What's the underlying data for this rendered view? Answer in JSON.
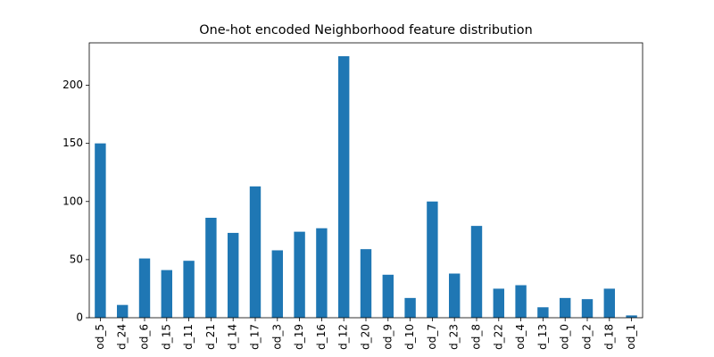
{
  "chart_data": {
    "type": "bar",
    "title": "One-hot encoded Neighborhood feature distribution",
    "categories": [
      "od_5",
      "d_24",
      "od_6",
      "d_15",
      "d_11",
      "d_21",
      "d_14",
      "d_17",
      "od_3",
      "d_19",
      "d_16",
      "d_12",
      "d_20",
      "od_9",
      "d_10",
      "od_7",
      "d_23",
      "od_8",
      "d_22",
      "od_4",
      "d_13",
      "od_0",
      "od_2",
      "d_18",
      "od_1"
    ],
    "values": [
      150,
      11,
      51,
      41,
      49,
      86,
      73,
      113,
      58,
      74,
      77,
      225,
      59,
      37,
      17,
      100,
      38,
      79,
      25,
      28,
      9,
      17,
      16,
      25,
      2
    ],
    "color": "#1f77b4",
    "ylim": [
      0,
      236.5
    ],
    "yticks": [
      0,
      50,
      100,
      150,
      200
    ],
    "grid": false
  }
}
